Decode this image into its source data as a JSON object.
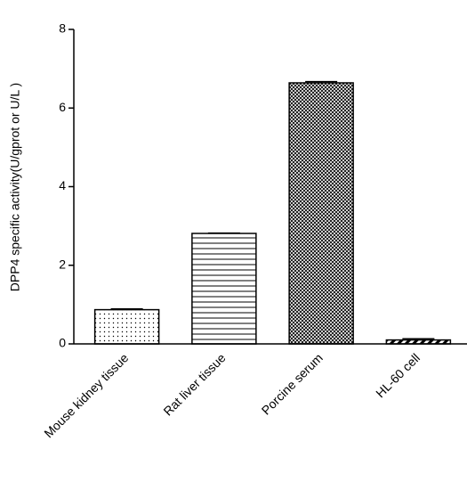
{
  "chart_data": {
    "type": "bar",
    "y_label": "DPP4 specific activity(U/gprot or U/L )",
    "categories": [
      "Mouse kidney tissue",
      "Rat liver tissue",
      "Porcine serum",
      "HL-60 cell"
    ],
    "values": [
      0.87,
      2.81,
      6.64,
      0.1
    ],
    "errors": [
      0.02,
      0.01,
      0.03,
      0.03
    ],
    "patterns": [
      "dots",
      "horizontal",
      "crosshatch",
      "diagonal"
    ],
    "color": "#000000",
    "ylim": [
      0,
      8
    ],
    "yticks": [
      0,
      2,
      4,
      6,
      8
    ],
    "grid": false
  }
}
